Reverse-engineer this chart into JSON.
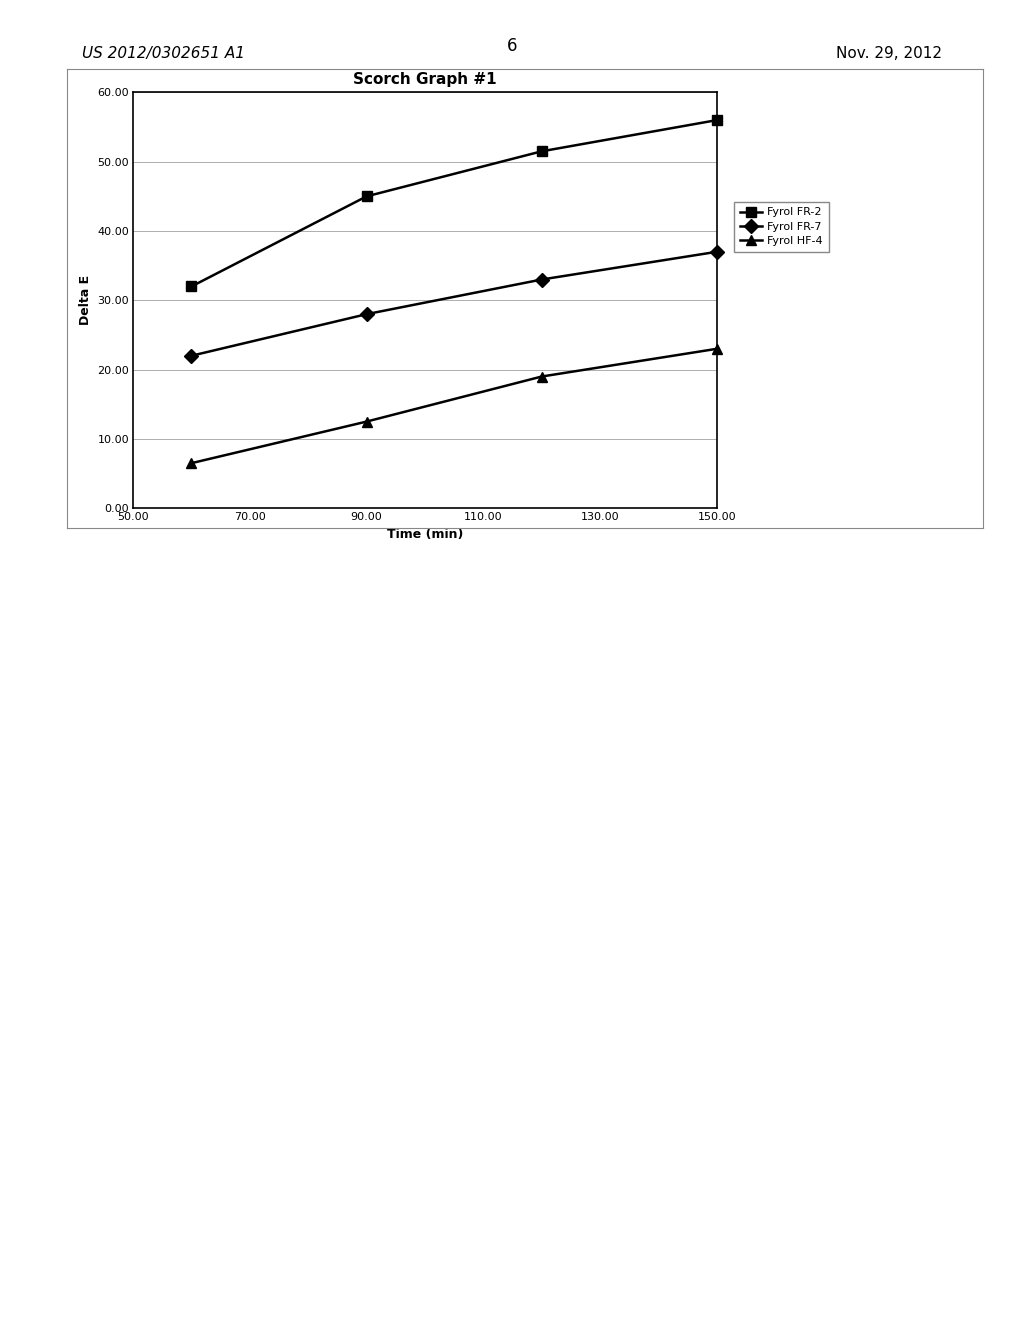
{
  "title": "Scorch Graph #1",
  "xlabel": "Time (min)",
  "ylabel": "Delta E",
  "xlim": [
    50.0,
    150.0
  ],
  "ylim": [
    0.0,
    60.0
  ],
  "xticks": [
    50.0,
    70.0,
    90.0,
    110.0,
    130.0,
    150.0
  ],
  "yticks": [
    0.0,
    10.0,
    20.0,
    30.0,
    40.0,
    50.0,
    60.0
  ],
  "series": [
    {
      "label": "Fyrol FR-2",
      "x": [
        60.0,
        90.0,
        120.0,
        150.0
      ],
      "y": [
        32.0,
        45.0,
        51.5,
        56.0
      ],
      "marker": "s",
      "color": "#000000",
      "markersize": 7,
      "linewidth": 1.8
    },
    {
      "label": "Fyrol FR-7",
      "x": [
        60.0,
        90.0,
        120.0,
        150.0
      ],
      "y": [
        22.0,
        28.0,
        33.0,
        37.0
      ],
      "marker": "D",
      "color": "#000000",
      "markersize": 7,
      "linewidth": 1.8
    },
    {
      "label": "Fyrol HF-4",
      "x": [
        60.0,
        90.0,
        120.0,
        150.0
      ],
      "y": [
        6.5,
        12.5,
        19.0,
        23.0
      ],
      "marker": "^",
      "color": "#000000",
      "markersize": 7,
      "linewidth": 1.8
    }
  ],
  "header_left": "US 2012/0302651 A1",
  "header_right": "Nov. 29, 2012",
  "page_number": "6",
  "background_color": "#ffffff",
  "grid_color": "#999999",
  "title_fontsize": 11,
  "label_fontsize": 9,
  "tick_fontsize": 8,
  "legend_fontsize": 8,
  "header_fontsize": 11,
  "page_num_fontsize": 12
}
